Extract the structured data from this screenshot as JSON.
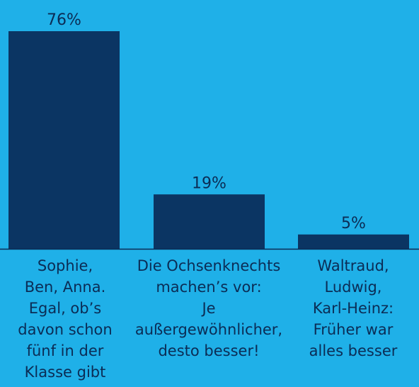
{
  "chart_data": {
    "type": "bar",
    "categories": [
      "Sophie,\nBen, Anna.\nEgal, ob’s\ndavon schon\nfünf in der\nKlasse gibt",
      "Die Ochsenknechts\nmachen’s vor:\nJe außergewöhnlicher,\ndesto besser!",
      "Waltraud,\nLudwig,\nKarl-Heinz:\nFrüher war\nalles besser"
    ],
    "values": [
      76,
      19,
      5
    ],
    "value_labels": [
      "76%",
      "19%",
      "5%"
    ],
    "unit": "%",
    "ylim": [
      0,
      76
    ],
    "grid": false,
    "legend": "none",
    "title": "",
    "xlabel": "",
    "ylabel": ""
  },
  "colors": {
    "background": "#1fb0e8",
    "bar": "#0b3563",
    "text": "#0b2c55",
    "axis": "#0b2c55"
  }
}
